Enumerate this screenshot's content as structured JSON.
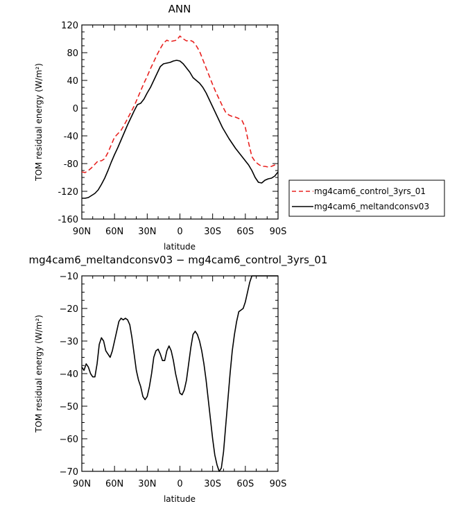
{
  "chart_data": [
    {
      "type": "line",
      "title": "ANN",
      "xlabel": "latitude",
      "ylabel": "TOM residual energy  (W/m²)",
      "xlim": [
        -90,
        90
      ],
      "ylim": [
        -160,
        120
      ],
      "x_tick_values": [
        -90,
        -60,
        -30,
        0,
        30,
        60,
        90
      ],
      "x_tick_labels": [
        "90N",
        "60N",
        "30N",
        "0",
        "30S",
        "60S",
        "90S"
      ],
      "y_tick_values": [
        -160,
        -120,
        -80,
        -40,
        0,
        40,
        80,
        120
      ],
      "y_tick_labels": [
        "-160",
        "-120",
        "-80",
        "-40",
        "0",
        "40",
        "80",
        "120"
      ],
      "legend": {
        "placement": "right"
      },
      "series": [
        {
          "name": "mg4cam6_control_3yrs_01",
          "color": "#e8201e",
          "dash": "dashed",
          "x": [
            -90,
            -87,
            -84,
            -81,
            -78,
            -75,
            -72,
            -69,
            -66,
            -63,
            -60,
            -57,
            -54,
            -51,
            -48,
            -45,
            -42,
            -39,
            -36,
            -33,
            -30,
            -27,
            -24,
            -21,
            -18,
            -15,
            -12,
            -9,
            -6,
            -3,
            0,
            3,
            6,
            9,
            12,
            15,
            18,
            21,
            24,
            27,
            30,
            33,
            36,
            39,
            42,
            45,
            48,
            51,
            54,
            57,
            60,
            63,
            66,
            69,
            72,
            75,
            78,
            81,
            84,
            87,
            90
          ],
          "values": [
            -92,
            -93,
            -90,
            -86,
            -81,
            -76,
            -76,
            -73,
            -64,
            -53,
            -42,
            -37,
            -32,
            -24,
            -15,
            -6,
            3,
            14,
            25,
            36,
            46,
            57,
            67,
            77,
            86,
            94,
            98,
            96,
            97,
            98,
            104,
            100,
            97,
            98,
            96,
            90,
            82,
            70,
            58,
            46,
            34,
            23,
            13,
            3,
            -6,
            -10,
            -12,
            -13,
            -15,
            -18,
            -28,
            -50,
            -70,
            -77,
            -81,
            -84,
            -84,
            -85,
            -84,
            -82,
            -82
          ]
        },
        {
          "name": "mg4cam6_meltandconsv03",
          "color": "#000000",
          "dash": "solid",
          "x": [
            -90,
            -87,
            -84,
            -81,
            -78,
            -75,
            -72,
            -69,
            -66,
            -63,
            -60,
            -57,
            -54,
            -51,
            -48,
            -45,
            -42,
            -39,
            -36,
            -33,
            -30,
            -27,
            -24,
            -21,
            -18,
            -15,
            -12,
            -9,
            -6,
            -3,
            0,
            3,
            6,
            9,
            12,
            15,
            18,
            21,
            24,
            27,
            30,
            33,
            36,
            39,
            42,
            45,
            48,
            51,
            54,
            57,
            60,
            63,
            66,
            69,
            72,
            75,
            78,
            81,
            84,
            87,
            90
          ],
          "values": [
            -130,
            -130,
            -129,
            -126,
            -123,
            -118,
            -110,
            -101,
            -90,
            -78,
            -67,
            -57,
            -46,
            -35,
            -24,
            -14,
            -4,
            5,
            7,
            13,
            22,
            30,
            40,
            50,
            60,
            64,
            65,
            66,
            68,
            69,
            68,
            64,
            58,
            52,
            44,
            40,
            36,
            30,
            22,
            12,
            2,
            -8,
            -18,
            -28,
            -36,
            -44,
            -51,
            -58,
            -64,
            -70,
            -76,
            -82,
            -90,
            -100,
            -107,
            -108,
            -104,
            -102,
            -101,
            -98,
            -92
          ]
        }
      ]
    },
    {
      "type": "line",
      "title": "mg4cam6_meltandconsv03 − mg4cam6_control_3yrs_01",
      "xlabel": "latitude",
      "ylabel": "TOM residual energy  (W/m²)",
      "xlim": [
        -90,
        90
      ],
      "ylim": [
        -70,
        -10
      ],
      "x_tick_values": [
        -90,
        -60,
        -30,
        0,
        30,
        60,
        90
      ],
      "x_tick_labels": [
        "90N",
        "60N",
        "30N",
        "0",
        "30S",
        "60S",
        "90S"
      ],
      "y_tick_values": [
        -70,
        -60,
        -50,
        -40,
        -30,
        -20,
        -10
      ],
      "y_tick_labels": [
        "−70",
        "−60",
        "−50",
        "−40",
        "−30",
        "−20",
        "−10"
      ],
      "series": [
        {
          "color": "#000000",
          "dash": "solid",
          "x": [
            -90,
            -88,
            -86,
            -84,
            -82,
            -80,
            -78,
            -76,
            -74,
            -72,
            -70,
            -68,
            -66,
            -64,
            -62,
            -60,
            -58,
            -56,
            -54,
            -52,
            -50,
            -48,
            -46,
            -44,
            -42,
            -40,
            -38,
            -36,
            -34,
            -32,
            -30,
            -28,
            -26,
            -24,
            -22,
            -20,
            -18,
            -16,
            -14,
            -12,
            -10,
            -8,
            -6,
            -4,
            -2,
            0,
            2,
            4,
            6,
            8,
            10,
            12,
            14,
            16,
            18,
            20,
            22,
            24,
            26,
            28,
            30,
            32,
            34,
            36,
            38,
            40,
            42,
            44,
            46,
            48,
            50,
            52,
            54,
            56,
            58,
            60,
            62,
            64,
            66,
            68,
            70,
            72,
            74,
            76,
            78,
            80,
            82,
            84,
            86,
            88,
            90
          ],
          "values": [
            -38,
            -39,
            -37,
            -38,
            -40,
            -41,
            -41,
            -37,
            -31,
            -29,
            -30,
            -33,
            -34,
            -35,
            -33,
            -30,
            -27,
            -24,
            -23,
            -23.5,
            -23,
            -23.5,
            -25,
            -29,
            -34,
            -39,
            -42,
            -44,
            -47,
            -48,
            -47,
            -44,
            -40,
            -35,
            -33,
            -32.5,
            -34,
            -36,
            -36,
            -33,
            -31.5,
            -33,
            -36,
            -40,
            -43,
            -46,
            -46.5,
            -45,
            -42,
            -37,
            -32,
            -28,
            -27,
            -28,
            -30,
            -33,
            -37,
            -42,
            -48,
            -54,
            -60,
            -65,
            -68,
            -70,
            -69,
            -64,
            -56,
            -48,
            -40,
            -33,
            -28,
            -24,
            -21,
            -20.5,
            -20,
            -18,
            -15,
            -12,
            -10,
            -10,
            -10,
            -10,
            -10,
            -10,
            -10,
            -10,
            -10,
            -10,
            -10,
            -10,
            -10
          ]
        }
      ]
    }
  ]
}
